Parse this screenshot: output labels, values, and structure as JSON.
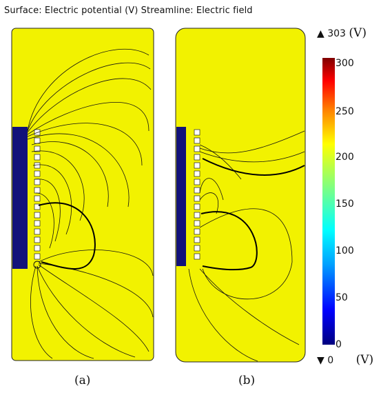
{
  "title": "Surface: Electric potential (V)  Streamline: Electric field",
  "legend": {
    "max_value": "303",
    "min_value": "0",
    "unit": "(V)",
    "ticks": [
      "300",
      "250",
      "200",
      "150",
      "100",
      "50",
      "0"
    ],
    "colormap": [
      "#00007f",
      "#0000ff",
      "#00a0ff",
      "#00ffff",
      "#80ff80",
      "#ffff00",
      "#ff8000",
      "#ff0000",
      "#7f0000"
    ]
  },
  "panels": [
    {
      "caption": "(a)"
    },
    {
      "caption": "(b)"
    }
  ],
  "colors": {
    "field_yellow": "#f2f200",
    "electrode_blue": "#12127a",
    "streamline": "#111111"
  }
}
